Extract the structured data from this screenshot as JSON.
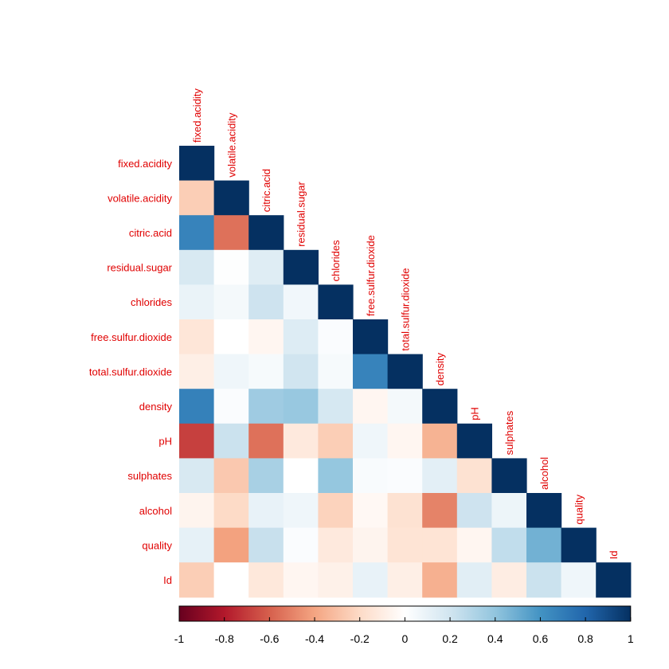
{
  "chart_data": {
    "type": "heatmap",
    "shape": "lower-triangle",
    "variables": [
      "fixed.acidity",
      "volatile.acidity",
      "citric.acid",
      "residual.sugar",
      "chlorides",
      "free.sulfur.dioxide",
      "total.sulfur.dioxide",
      "density",
      "pH",
      "sulphates",
      "alcohol",
      "quality",
      "Id"
    ],
    "correlations": [
      [
        1
      ],
      [
        -0.25,
        1
      ],
      [
        0.67,
        -0.55,
        1
      ],
      [
        0.17,
        0.01,
        0.14,
        1
      ],
      [
        0.09,
        0.05,
        0.21,
        0.06,
        1
      ],
      [
        -0.14,
        0.0,
        -0.05,
        0.15,
        0.02,
        1
      ],
      [
        -0.09,
        0.07,
        0.04,
        0.2,
        0.04,
        0.67,
        1
      ],
      [
        0.68,
        0.02,
        0.36,
        0.38,
        0.18,
        -0.05,
        0.05,
        1
      ],
      [
        -0.69,
        0.22,
        -0.55,
        -0.12,
        -0.25,
        0.07,
        -0.05,
        -0.35,
        1
      ],
      [
        0.17,
        -0.27,
        0.33,
        0.0,
        0.39,
        0.03,
        0.02,
        0.12,
        -0.16,
        1
      ],
      [
        -0.06,
        -0.2,
        0.1,
        0.07,
        -0.23,
        -0.04,
        -0.16,
        -0.5,
        0.21,
        0.08,
        1
      ],
      [
        0.11,
        -0.41,
        0.23,
        0.02,
        -0.12,
        -0.06,
        -0.15,
        -0.15,
        -0.05,
        0.25,
        0.48,
        1
      ],
      [
        -0.25,
        0.0,
        -0.13,
        -0.05,
        -0.08,
        0.1,
        -0.09,
        -0.36,
        0.13,
        -0.1,
        0.22,
        0.07,
        1
      ]
    ],
    "colorbar": {
      "range": [
        -1,
        1
      ],
      "ticks": [
        "-1",
        "-0.8",
        "-0.6",
        "-0.4",
        "-0.2",
        "0",
        "0.2",
        "0.4",
        "0.6",
        "0.8",
        "1"
      ],
      "colors": [
        "#67001F",
        "#B2182B",
        "#D6604D",
        "#F4A582",
        "#FDDBC7",
        "#FFFFFF",
        "#D1E5F0",
        "#92C5DE",
        "#4393C3",
        "#2166AC",
        "#053061"
      ]
    }
  }
}
